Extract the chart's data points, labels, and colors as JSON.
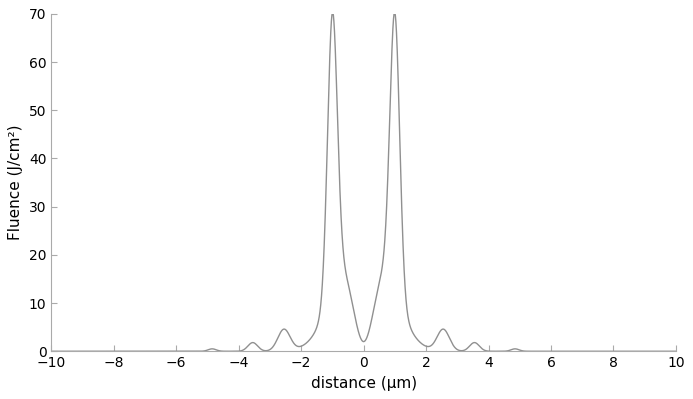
{
  "xlabel": "distance (μm)",
  "ylabel": "Fluence (J/cm²)",
  "xlim": [
    -10,
    10
  ],
  "ylim": [
    0,
    70
  ],
  "xticks": [
    -10,
    -8,
    -6,
    -4,
    -2,
    0,
    2,
    4,
    6,
    8,
    10
  ],
  "yticks": [
    0,
    10,
    20,
    30,
    40,
    50,
    60,
    70
  ],
  "line_color": "#909090",
  "line_width": 1.0,
  "bg_color": "#ffffff",
  "tick_label_fontsize": 10,
  "axis_label_fontsize": 11
}
